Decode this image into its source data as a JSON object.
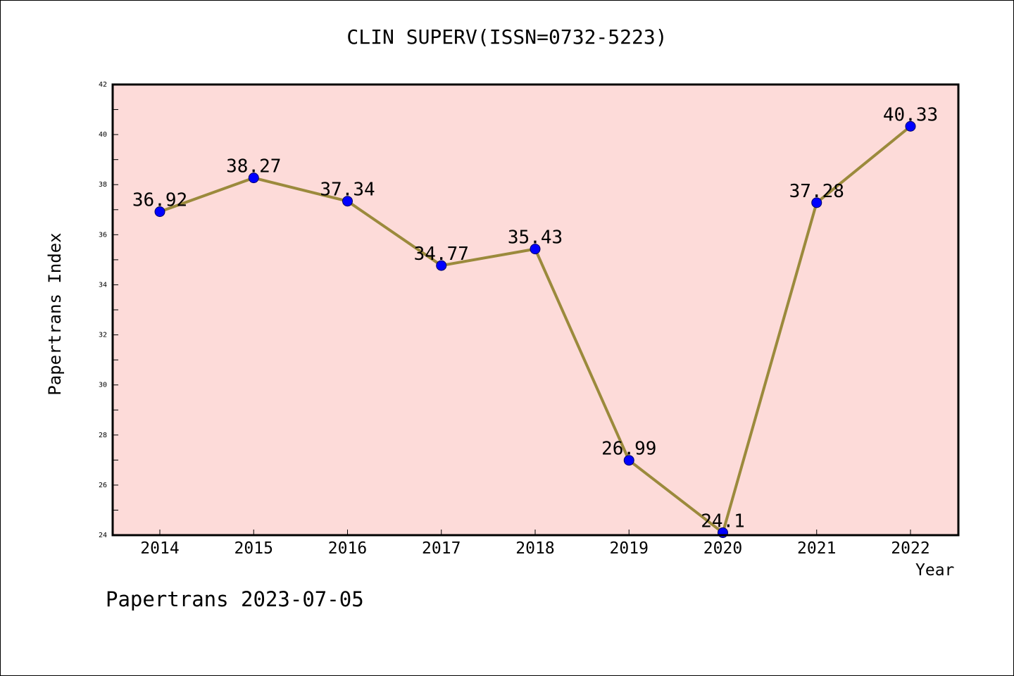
{
  "chart_data": {
    "type": "line",
    "title": "CLIN SUPERV(ISSN=0732-5223)",
    "xlabel": "Year",
    "ylabel": "Papertrans Index",
    "categories": [
      "2014",
      "2015",
      "2016",
      "2017",
      "2018",
      "2019",
      "2020",
      "2021",
      "2022"
    ],
    "series": [
      {
        "values": [
          36.92,
          38.27,
          37.34,
          34.77,
          35.43,
          26.99,
          24.1,
          37.28,
          40.33
        ],
        "data_labels": [
          "36.92",
          "38.27",
          "37.34",
          "34.77",
          "35.43",
          "26.99",
          "24.1",
          "37.28",
          "40.33"
        ]
      }
    ],
    "ylim": [
      24,
      42
    ],
    "y_ticks": [
      24,
      26,
      28,
      30,
      32,
      34,
      36,
      38,
      40,
      42
    ],
    "grid": false,
    "legend": "none",
    "colors": {
      "plot_background": "#fddbd9",
      "line": "#9b8a3c",
      "marker": "#0000ff",
      "axis": "#000000"
    }
  },
  "footer": "Papertrans 2023-07-05"
}
